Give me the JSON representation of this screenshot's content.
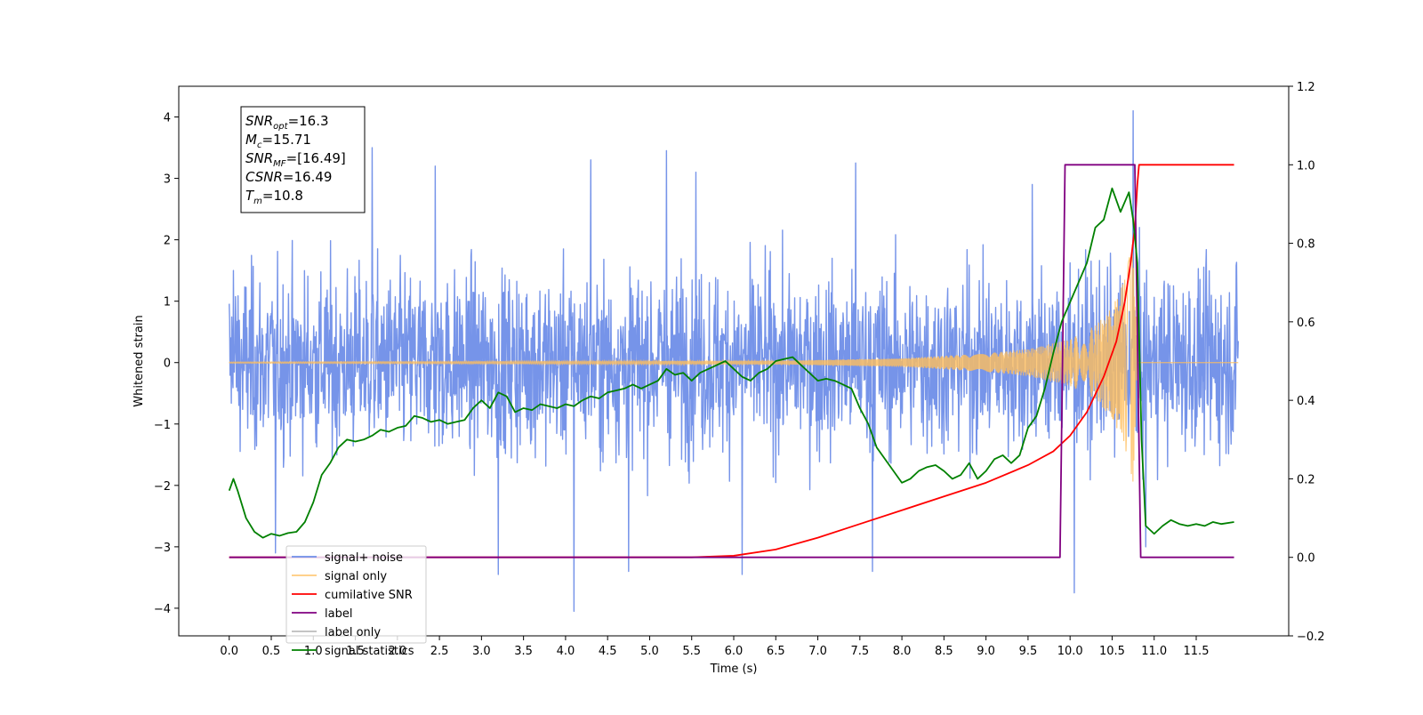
{
  "chart_data": {
    "type": "line",
    "title": "",
    "xlabel": "Time (s)",
    "ylabel": "Whitened strain",
    "ylabel_right": "",
    "xlim": [
      -0.6,
      12.6
    ],
    "ylim": [
      -4.45,
      4.5
    ],
    "ylim_right": [
      -0.2,
      1.2
    ],
    "x_ticks": [
      0.0,
      0.5,
      1.0,
      1.5,
      2.0,
      2.5,
      3.0,
      3.5,
      4.0,
      4.5,
      5.0,
      5.5,
      6.0,
      6.5,
      7.0,
      7.5,
      8.0,
      8.5,
      9.0,
      9.5,
      10.0,
      10.5,
      11.0,
      11.5
    ],
    "x_tick_labels": [
      "0.0",
      "0.5",
      "1.0",
      "1.5",
      "2.0",
      "2.5",
      "3.0",
      "3.5",
      "4.0",
      "4.5",
      "5.0",
      "5.5",
      "6.0",
      "6.5",
      "7.0",
      "7.5",
      "8.0",
      "8.5",
      "9.0",
      "9.5",
      "10.0",
      "10.5",
      "11.0",
      "11.5"
    ],
    "y_ticks": [
      -4,
      -3,
      -2,
      -1,
      0,
      1,
      2,
      3,
      4
    ],
    "y_tick_labels": [
      "−4",
      "−3",
      "−2",
      "−1",
      "0",
      "1",
      "2",
      "3",
      "4"
    ],
    "y_ticks_right": [
      -0.2,
      0.0,
      0.2,
      0.4,
      0.6,
      0.8,
      1.0,
      1.2
    ],
    "y_tick_labels_right": [
      "−0.2",
      "0.0",
      "0.2",
      "0.4",
      "0.6",
      "0.8",
      "1.0",
      "1.2"
    ],
    "grid": false,
    "legend_position": "lower-left",
    "info_box": {
      "lines": [
        {
          "base": "SNR",
          "sub": "opt",
          "value": "=16.3"
        },
        {
          "base": "M",
          "sub": "c",
          "value": "=15.71"
        },
        {
          "base": "SNR",
          "sub": "MF",
          "value": "=[16.49]"
        },
        {
          "base": "CSNR",
          "sub": "",
          "value": "=16.49"
        },
        {
          "base": "T",
          "sub": "m",
          "value": "=10.8"
        }
      ]
    },
    "series": [
      {
        "name": "signal+ noise",
        "color": "#6f8ee8",
        "axis": "left",
        "kind": "noise",
        "x_range": [
          0.0,
          12.0
        ],
        "typical_extent": [
          -2.0,
          2.2
        ],
        "peaks": [
          [
            0.05,
            1.5
          ],
          [
            1.7,
            3.5
          ],
          [
            2.45,
            3.2
          ],
          [
            4.3,
            3.3
          ],
          [
            5.2,
            3.45
          ],
          [
            5.55,
            3.1
          ],
          [
            7.45,
            3.25
          ],
          [
            9.55,
            2.9
          ],
          [
            10.75,
            4.1
          ],
          [
            0.55,
            -3.1
          ],
          [
            3.2,
            -3.45
          ],
          [
            4.1,
            -4.05
          ],
          [
            4.75,
            -3.4
          ],
          [
            6.1,
            -3.45
          ],
          [
            7.65,
            -3.4
          ],
          [
            10.05,
            -3.75
          ],
          [
            10.9,
            -3.0
          ]
        ]
      },
      {
        "name": "signal only",
        "color": "#ffbe5c",
        "axis": "left",
        "kind": "chirp",
        "x_range": [
          0.0,
          12.0
        ],
        "merger_time": 10.8,
        "amplitude": [
          [
            0.0,
            0.01
          ],
          [
            6.6,
            0.03
          ],
          [
            8.0,
            0.07
          ],
          [
            9.0,
            0.15
          ],
          [
            9.5,
            0.22
          ],
          [
            10.0,
            0.38
          ],
          [
            10.3,
            0.6
          ],
          [
            10.5,
            0.9
          ],
          [
            10.65,
            1.35
          ],
          [
            10.75,
            2.0
          ],
          [
            10.8,
            0.0
          ],
          [
            12.0,
            0.0
          ]
        ]
      },
      {
        "name": "cumilative SNR",
        "color": "#ff0000",
        "axis": "right",
        "x": [
          0.0,
          5.5,
          6.0,
          6.5,
          7.0,
          7.5,
          8.0,
          8.5,
          9.0,
          9.5,
          9.8,
          10.0,
          10.2,
          10.4,
          10.55,
          10.65,
          10.72,
          10.77,
          10.8,
          10.82,
          11.0,
          11.5,
          11.95
        ],
        "y": [
          0.0,
          0.0,
          0.004,
          0.02,
          0.05,
          0.085,
          0.12,
          0.155,
          0.19,
          0.235,
          0.27,
          0.31,
          0.37,
          0.46,
          0.55,
          0.65,
          0.75,
          0.84,
          0.95,
          1.0,
          1.0,
          1.0,
          1.0
        ]
      },
      {
        "name": "label",
        "color": "#800080",
        "axis": "right",
        "x": [
          0.0,
          9.88,
          9.94,
          10.77,
          10.84,
          11.95
        ],
        "y": [
          0.0,
          0.0,
          1.0,
          1.0,
          0.0,
          0.0
        ]
      },
      {
        "name": "label only",
        "color": "#bbbbbb",
        "axis": "right",
        "hidden": true,
        "x": [],
        "y": []
      },
      {
        "name": "signal statistics",
        "color": "#008000",
        "axis": "right",
        "x": [
          0.0,
          0.05,
          0.1,
          0.2,
          0.3,
          0.4,
          0.5,
          0.6,
          0.7,
          0.8,
          0.9,
          1.0,
          1.1,
          1.2,
          1.3,
          1.4,
          1.5,
          1.6,
          1.7,
          1.8,
          1.9,
          2.0,
          2.1,
          2.2,
          2.3,
          2.4,
          2.5,
          2.6,
          2.7,
          2.8,
          2.9,
          3.0,
          3.1,
          3.2,
          3.3,
          3.4,
          3.5,
          3.6,
          3.7,
          3.8,
          3.9,
          4.0,
          4.1,
          4.2,
          4.3,
          4.4,
          4.5,
          4.6,
          4.7,
          4.8,
          4.9,
          5.0,
          5.1,
          5.2,
          5.3,
          5.4,
          5.5,
          5.6,
          5.7,
          5.8,
          5.9,
          6.0,
          6.1,
          6.2,
          6.3,
          6.4,
          6.5,
          6.6,
          6.7,
          6.8,
          6.9,
          7.0,
          7.1,
          7.2,
          7.3,
          7.4,
          7.5,
          7.6,
          7.7,
          7.8,
          7.9,
          8.0,
          8.1,
          8.2,
          8.3,
          8.4,
          8.5,
          8.6,
          8.7,
          8.8,
          8.9,
          9.0,
          9.1,
          9.2,
          9.3,
          9.4,
          9.5,
          9.6,
          9.7,
          9.8,
          9.9,
          10.0,
          10.1,
          10.2,
          10.3,
          10.4,
          10.5,
          10.6,
          10.7,
          10.75,
          10.8,
          10.85,
          10.9,
          11.0,
          11.1,
          11.2,
          11.3,
          11.4,
          11.5,
          11.6,
          11.7,
          11.8,
          11.95
        ],
        "y": [
          0.17,
          0.2,
          0.17,
          0.1,
          0.065,
          0.05,
          0.06,
          0.055,
          0.062,
          0.065,
          0.09,
          0.14,
          0.21,
          0.24,
          0.28,
          0.3,
          0.295,
          0.3,
          0.31,
          0.325,
          0.32,
          0.33,
          0.335,
          0.36,
          0.355,
          0.345,
          0.35,
          0.34,
          0.345,
          0.35,
          0.38,
          0.4,
          0.38,
          0.42,
          0.41,
          0.37,
          0.38,
          0.375,
          0.39,
          0.385,
          0.38,
          0.39,
          0.385,
          0.4,
          0.41,
          0.405,
          0.42,
          0.425,
          0.43,
          0.44,
          0.43,
          0.44,
          0.45,
          0.48,
          0.465,
          0.47,
          0.45,
          0.47,
          0.48,
          0.49,
          0.5,
          0.48,
          0.46,
          0.45,
          0.47,
          0.48,
          0.5,
          0.505,
          0.51,
          0.49,
          0.47,
          0.45,
          0.455,
          0.45,
          0.44,
          0.43,
          0.38,
          0.34,
          0.28,
          0.25,
          0.22,
          0.19,
          0.2,
          0.22,
          0.23,
          0.235,
          0.22,
          0.2,
          0.21,
          0.24,
          0.2,
          0.22,
          0.25,
          0.26,
          0.24,
          0.26,
          0.33,
          0.36,
          0.43,
          0.52,
          0.6,
          0.65,
          0.7,
          0.75,
          0.84,
          0.86,
          0.94,
          0.88,
          0.93,
          0.86,
          0.75,
          0.3,
          0.08,
          0.06,
          0.08,
          0.095,
          0.085,
          0.08,
          0.085,
          0.08,
          0.09,
          0.085,
          0.09
        ]
      }
    ]
  }
}
